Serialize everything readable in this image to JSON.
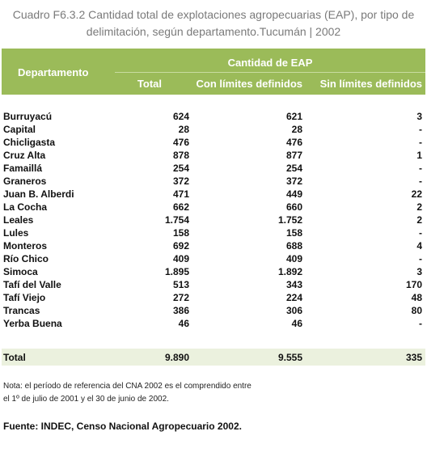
{
  "header": {
    "title": "Cuadro F6.3.2 Cantidad total de explotaciones agropecuarias (EAP), por tipo de delimitación, según departamento.Tucumán | 2002"
  },
  "table": {
    "columns": {
      "department": "Departamento",
      "group": "Cantidad de EAP",
      "total": "Total",
      "with_limits": "Con límites definidos",
      "without_limits": "Sin límites definidos"
    },
    "rows": [
      [
        "Burruyacú",
        "624",
        "621",
        "3"
      ],
      [
        "Capital",
        "28",
        "28",
        "-"
      ],
      [
        "Chicligasta",
        "476",
        "476",
        "-"
      ],
      [
        "Cruz Alta",
        "878",
        "877",
        "1"
      ],
      [
        "Famaillá",
        "254",
        "254",
        "-"
      ],
      [
        "Graneros",
        "372",
        "372",
        "-"
      ],
      [
        "Juan B. Alberdi",
        "471",
        "449",
        "22"
      ],
      [
        "La Cocha",
        "662",
        "660",
        "2"
      ],
      [
        "Leales",
        "1.754",
        "1.752",
        "2"
      ],
      [
        "Lules",
        "158",
        "158",
        "-"
      ],
      [
        "Monteros",
        "692",
        "688",
        "4"
      ],
      [
        "Río Chico",
        "409",
        "409",
        "-"
      ],
      [
        "Simoca",
        "1.895",
        "1.892",
        "3"
      ],
      [
        "Tafí del Valle",
        "513",
        "343",
        "170"
      ],
      [
        "Tafí Viejo",
        "272",
        "224",
        "48"
      ],
      [
        "Trancas",
        "386",
        "306",
        "80"
      ],
      [
        "Yerba Buena",
        "46",
        "46",
        "-"
      ]
    ],
    "total": [
      "Total",
      "9.890",
      "9.555",
      "335"
    ]
  },
  "notes": [
    "Nota: el período de referencia del CNA 2002 es el comprendido entre",
    "el 1º de julio de 2001 y el 30 de junio de 2002."
  ],
  "source": "Fuente: INDEC, Censo Nacional Agropecuario 2002."
}
